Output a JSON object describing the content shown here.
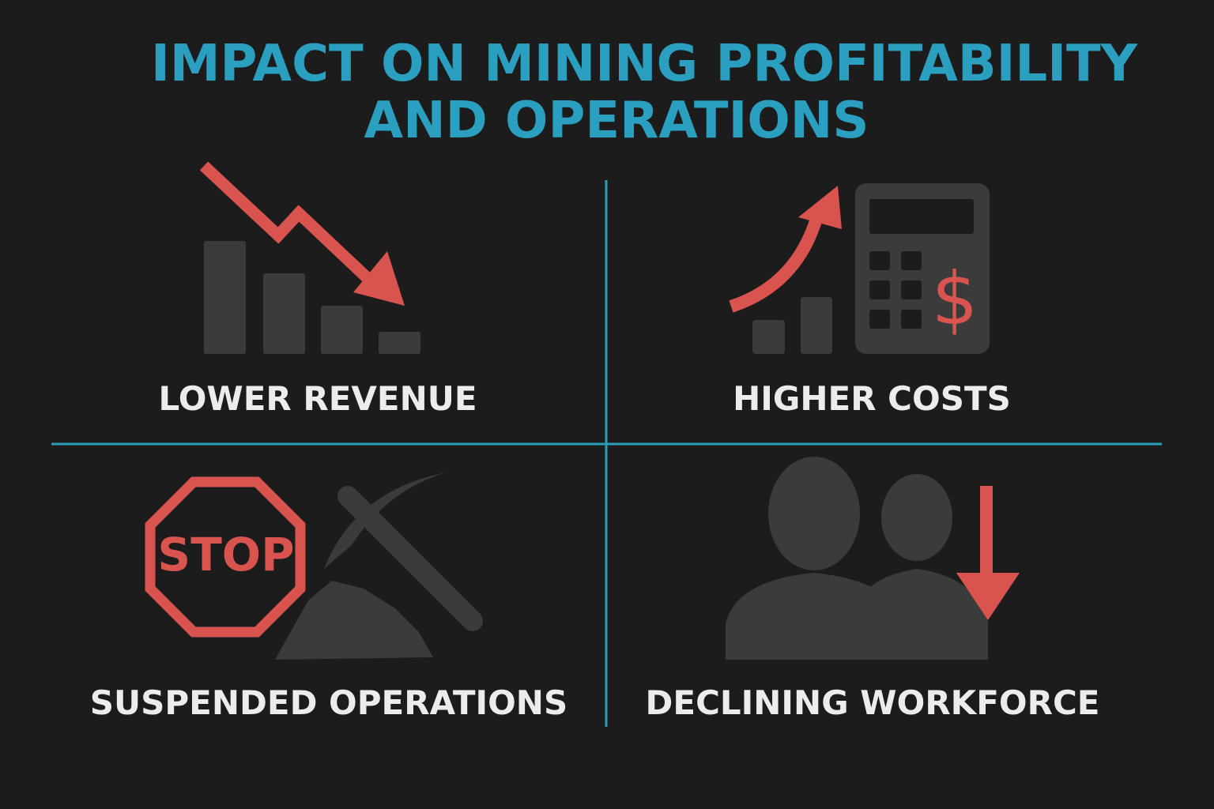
{
  "title": {
    "lines": [
      "IMPACT ON MINING PROFITABILITY",
      "AND OPERATIONS"
    ]
  },
  "quadrants": [
    {
      "label": "LOWER REVENUE"
    },
    {
      "label": "HIGHER COSTS"
    },
    {
      "label": "SUSPENDED OPERATIONS"
    },
    {
      "label": "DECLINING WORKFORCE"
    }
  ],
  "icons": {
    "stop_sign": "STOP",
    "currency": "$"
  }
}
